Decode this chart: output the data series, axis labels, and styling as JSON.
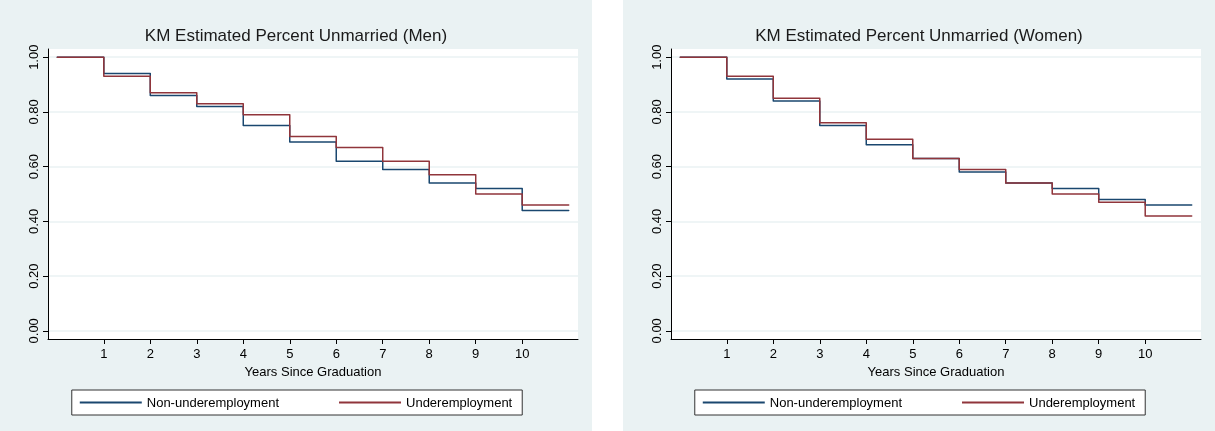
{
  "chart_data": [
    {
      "type": "step",
      "title": "KM Estimated Percent Unmarried (Men)",
      "xlabel": "Years Since Graduation",
      "x": [
        0,
        1,
        2,
        3,
        4,
        5,
        6,
        7,
        8,
        9,
        10,
        11
      ],
      "series": [
        {
          "name": "Non-underemployment",
          "color": "#1a476f",
          "values": [
            1.0,
            0.94,
            0.86,
            0.82,
            0.75,
            0.69,
            0.62,
            0.59,
            0.54,
            0.52,
            0.44,
            0.44
          ]
        },
        {
          "name": "Underemployment",
          "color": "#90353b",
          "values": [
            1.0,
            0.93,
            0.87,
            0.83,
            0.79,
            0.71,
            0.67,
            0.62,
            0.57,
            0.5,
            0.46,
            0.46
          ]
        }
      ],
      "xlim": [
        -0.2,
        11.2
      ],
      "xticks": [
        1,
        2,
        3,
        4,
        5,
        6,
        7,
        8,
        9,
        10
      ],
      "ylim": [
        -0.03,
        1.03
      ],
      "yticks": [
        {
          "value": 0,
          "label": "0.00"
        },
        {
          "value": 0.2,
          "label": "0.20"
        },
        {
          "value": 0.4,
          "label": "0.40"
        },
        {
          "value": 0.6,
          "label": "0.60"
        },
        {
          "value": 0.8,
          "label": "0.80"
        },
        {
          "value": 1,
          "label": "1.00"
        }
      ],
      "grid": "y",
      "legend": "bottom",
      "marker": "none"
    },
    {
      "type": "step",
      "title": "KM Estimated Percent Unmarried (Women)",
      "xlabel": "Years Since Graduation",
      "x": [
        0,
        1,
        2,
        3,
        4,
        5,
        6,
        7,
        8,
        9,
        10,
        11
      ],
      "series": [
        {
          "name": "Non-underemployment",
          "color": "#1a476f",
          "values": [
            1.0,
            0.92,
            0.84,
            0.75,
            0.68,
            0.63,
            0.58,
            0.54,
            0.52,
            0.48,
            0.46,
            0.46
          ]
        },
        {
          "name": "Underemployment",
          "color": "#90353b",
          "values": [
            1.0,
            0.93,
            0.85,
            0.76,
            0.7,
            0.63,
            0.59,
            0.54,
            0.5,
            0.47,
            0.42,
            0.42
          ]
        }
      ],
      "xlim": [
        -0.2,
        11.2
      ],
      "xticks": [
        1,
        2,
        3,
        4,
        5,
        6,
        7,
        8,
        9,
        10
      ],
      "ylim": [
        -0.03,
        1.03
      ],
      "yticks": [
        {
          "value": 0,
          "label": "0.00"
        },
        {
          "value": 0.2,
          "label": "0.20"
        },
        {
          "value": 0.4,
          "label": "0.40"
        },
        {
          "value": 0.6,
          "label": "0.60"
        },
        {
          "value": 0.8,
          "label": "0.80"
        },
        {
          "value": 1,
          "label": "1.00"
        }
      ],
      "grid": "y",
      "legend": "bottom",
      "marker": "none"
    }
  ]
}
